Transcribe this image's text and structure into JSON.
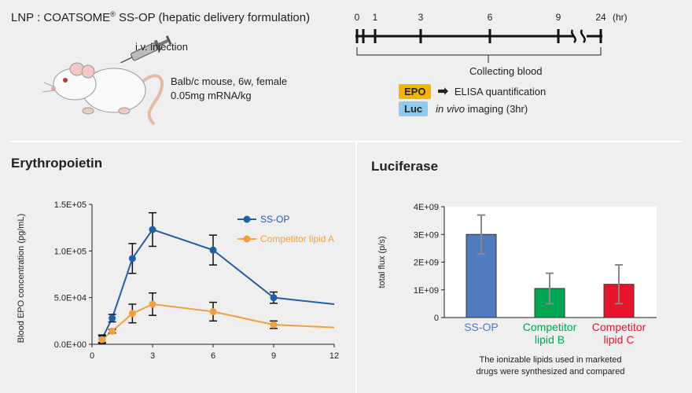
{
  "header": {
    "title": "LNP : COATSOME",
    "title_sup": "®",
    "title_suffix": " SS-OP (hepatic delivery formulation)",
    "injection_label": "i.v. injection",
    "mouse_line1": "Balb/c mouse, 6w, female",
    "mouse_line2": "0.05mg mRNA/kg"
  },
  "timeline": {
    "ticks": [
      {
        "label": "0",
        "value": 0
      },
      {
        "label": "1",
        "value": 1
      },
      {
        "label": "3",
        "value": 3
      },
      {
        "label": "6",
        "value": 6
      },
      {
        "label": "9",
        "value": 9
      },
      {
        "label": "24",
        "value": 24
      }
    ],
    "unit": "(hr)",
    "collecting_label": "Collecting blood",
    "epo_badge": "EPO",
    "epo_text": "ELISA quantification",
    "luc_badge": "Luc",
    "luc_text_italic": "in vivo",
    "luc_text": " imaging (3hr)"
  },
  "colors": {
    "ssop": "#1f5fa8",
    "competitor_a": "#f0a040",
    "epo_badge": "#f4b400",
    "luc_badge": "#8ecbee",
    "bar_b": "#00a651",
    "bar_c": "#e8142b"
  },
  "chart_data": [
    {
      "type": "line",
      "title": "Erythropoietin",
      "xlabel": "",
      "ylabel": "Blood EPO concentration (pg/mL)",
      "xlim": [
        0,
        12
      ],
      "ylim": [
        0,
        150000
      ],
      "x_ticks": [
        0,
        3,
        6,
        9,
        12
      ],
      "y_ticks": [
        0,
        50000,
        100000,
        150000
      ],
      "y_tick_labels": [
        "0.0E+00",
        "5.0E+04",
        "1.0E+05",
        "1.5E+05"
      ],
      "legend_position": "top-right",
      "series": [
        {
          "name": "SS-OP",
          "color": "#1f5fa8",
          "x": [
            0.5,
            1,
            2,
            3,
            6,
            9,
            12
          ],
          "y": [
            6000,
            28000,
            92000,
            123000,
            101000,
            50000,
            43000
          ],
          "err": [
            4000,
            4000,
            16000,
            18000,
            16000,
            6000,
            null
          ]
        },
        {
          "name": "Competitor lipid A",
          "color": "#f0a040",
          "x": [
            0.5,
            1,
            2,
            3,
            6,
            9,
            12
          ],
          "y": [
            5000,
            14000,
            33000,
            43000,
            35000,
            21000,
            18000
          ],
          "err": [
            4000,
            2000,
            10000,
            12000,
            10000,
            4000,
            null
          ]
        }
      ]
    },
    {
      "type": "bar",
      "title": "Luciferase",
      "ylabel": "total flux (p/s)",
      "ylim": [
        0,
        4000000000
      ],
      "y_ticks": [
        0,
        1000000000,
        2000000000,
        3000000000,
        4000000000
      ],
      "y_tick_labels": [
        "0",
        "1E+09",
        "2E+09",
        "3E+09",
        "4E+09"
      ],
      "categories": [
        "SS-OP",
        "Competitor lipid B",
        "Competitor lipid C"
      ],
      "category_lines": [
        [
          "SS-OP"
        ],
        [
          "Competitor",
          "lipid B"
        ],
        [
          "Competitor",
          "lipid C"
        ]
      ],
      "values": [
        3000000000,
        1050000000,
        1200000000
      ],
      "errors": [
        700000000,
        550000000,
        700000000
      ],
      "bar_colors": [
        "#4f7bbf",
        "#00a651",
        "#e8142b"
      ],
      "label_colors": [
        "#4f7bbf",
        "#00a651",
        "#e8142b"
      ],
      "footnote_line1": "The ionizable lipids used in marketed",
      "footnote_line2": "drugs were synthesized and compared"
    }
  ]
}
